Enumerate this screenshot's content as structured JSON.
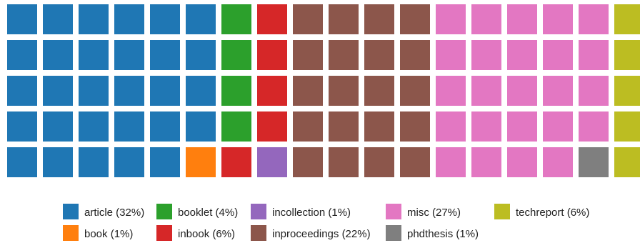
{
  "chart_data": {
    "type": "waffle",
    "grid": {
      "columns": 18,
      "rows": 5,
      "fill_order": "column-major, top-to-bottom"
    },
    "categories": [
      "article",
      "book",
      "booklet",
      "inbook",
      "incollection",
      "inproceedings",
      "misc",
      "phdthesis",
      "techreport"
    ],
    "legend_labels": [
      "article (32%)",
      "book (1%)",
      "booklet (4%)",
      "inbook (6%)",
      "incollection (1%)",
      "inproceedings (22%)",
      "misc (27%)",
      "phdthesis (1%)",
      "techreport (6%)"
    ],
    "percent": [
      32,
      1,
      4,
      6,
      1,
      22,
      27,
      1,
      6
    ],
    "tiles": [
      29,
      1,
      4,
      5,
      1,
      20,
      24,
      1,
      5
    ],
    "colors": [
      "#1f77b4",
      "#ff7f0e",
      "#2ca02c",
      "#d62728",
      "#9467bd",
      "#8c564b",
      "#e377c2",
      "#7f7f7f",
      "#bcbd22"
    ],
    "legend": {
      "placement": "bottom",
      "columns": 5,
      "rows": 2,
      "fill_order": "column-major"
    },
    "title": "",
    "grid_lines": false
  }
}
